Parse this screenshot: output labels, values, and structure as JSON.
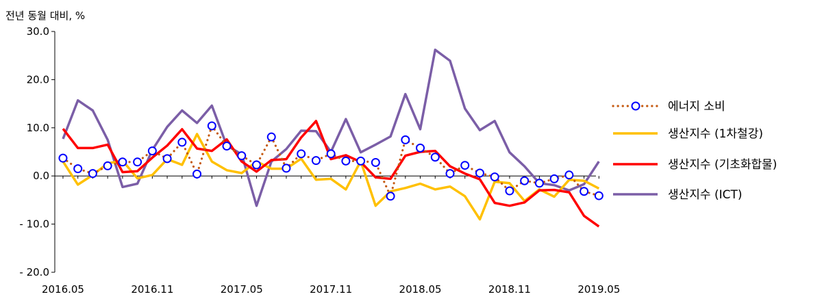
{
  "chart_data": {
    "type": "line",
    "ylabel": "전년 동월 대비, %",
    "ylim": [
      -20,
      30
    ],
    "y_ticks": [
      "30.0",
      "20.0",
      "10.0",
      "0.0",
      "- 10.0",
      "- 20.0"
    ],
    "y_tick_values": [
      30,
      20,
      10,
      0,
      -10,
      -20
    ],
    "x_tick_labels": [
      "2016.05",
      "2016.11",
      "2017.05",
      "2017.11",
      "2018.05",
      "2018.11",
      "2019.05"
    ],
    "x_tick_index": [
      0,
      6,
      12,
      18,
      24,
      30,
      36
    ],
    "x": [
      "2016.05",
      "2016.06",
      "2016.07",
      "2016.08",
      "2016.09",
      "2016.10",
      "2016.11",
      "2016.12",
      "2017.01",
      "2017.02",
      "2017.03",
      "2017.04",
      "2017.05",
      "2017.06",
      "2017.07",
      "2017.08",
      "2017.09",
      "2017.10",
      "2017.11",
      "2017.12",
      "2018.01",
      "2018.02",
      "2018.03",
      "2018.04",
      "2018.05",
      "2018.06",
      "2018.07",
      "2018.08",
      "2018.09",
      "2018.10",
      "2018.11",
      "2018.12",
      "2019.01",
      "2019.02",
      "2019.03",
      "2019.04",
      "2019.05"
    ],
    "grid": false,
    "legend_position": "right",
    "series": [
      {
        "name": "에너지 소비",
        "style": "dotted-markers",
        "color": "#c55a11",
        "marker_color": "#0000ff",
        "values": [
          3.7,
          1.5,
          0.5,
          2.1,
          2.9,
          2.9,
          5.2,
          3.6,
          7.0,
          0.4,
          10.4,
          6.2,
          4.2,
          2.3,
          8.1,
          1.6,
          4.6,
          3.2,
          4.6,
          3.1,
          3.1,
          2.8,
          -4.2,
          7.5,
          5.8,
          3.9,
          0.5,
          2.2,
          0.6,
          -0.2,
          -3.1,
          -1.0,
          -1.5,
          -0.6,
          0.2,
          -3.2,
          -4.1
        ]
      },
      {
        "name": "생산지수 (1차철강)",
        "style": "line",
        "color": "#ffc000",
        "values": [
          3.0,
          -1.8,
          0.2,
          2.6,
          3.2,
          -0.5,
          0.2,
          3.5,
          2.3,
          8.7,
          3.0,
          1.2,
          0.6,
          3.0,
          1.5,
          1.5,
          3.6,
          -0.8,
          -0.6,
          -2.8,
          3.1,
          -6.2,
          -3.2,
          -2.5,
          -1.6,
          -2.8,
          -2.2,
          -4.2,
          -9.0,
          -1.2,
          -1.5,
          -5.2,
          -2.8,
          -4.3,
          -0.8,
          -1.0,
          -2.6
        ]
      },
      {
        "name": "생산지수 (기초화합물)",
        "style": "line",
        "color": "#ff0000",
        "values": [
          9.8,
          5.8,
          5.8,
          6.5,
          0.8,
          1.0,
          3.8,
          6.3,
          9.7,
          5.7,
          5.2,
          7.6,
          3.0,
          0.9,
          3.3,
          3.5,
          8.0,
          11.4,
          3.5,
          4.3,
          2.9,
          -0.3,
          -0.6,
          4.2,
          5.0,
          5.2,
          2.0,
          0.5,
          -0.7,
          -5.6,
          -6.2,
          -5.5,
          -3.0,
          -2.9,
          -3.4,
          -8.3,
          -10.5
        ]
      },
      {
        "name": "생산지수 (ICT)",
        "style": "line",
        "color": "#7b5ea7",
        "values": [
          7.7,
          15.7,
          13.6,
          7.5,
          -2.3,
          -1.6,
          5.4,
          10.2,
          13.6,
          11.0,
          14.6,
          6.3,
          4.5,
          -6.2,
          3.0,
          5.6,
          9.4,
          9.3,
          5.0,
          11.8,
          4.9,
          6.5,
          8.2,
          17.0,
          9.7,
          26.2,
          23.9,
          14.0,
          9.5,
          11.4,
          4.9,
          2.0,
          -1.5,
          -1.9,
          -3.0,
          -1.7,
          3.0
        ]
      }
    ]
  }
}
